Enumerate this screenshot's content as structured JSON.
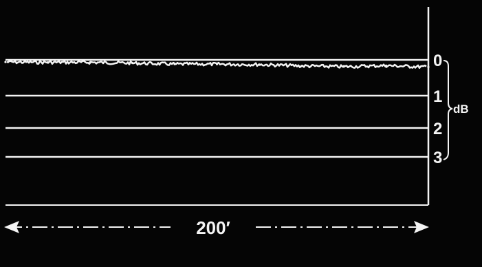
{
  "chart_data": {
    "type": "line",
    "title": "",
    "ylabel": "dB",
    "yticks": [
      "0",
      "1",
      "2",
      "3"
    ],
    "ylim": [
      0,
      3
    ],
    "y_inverted": true,
    "reference_lines": [
      0,
      1,
      2,
      3
    ],
    "x_span_label": "200′",
    "series": [
      {
        "x": [
          0,
          20,
          40,
          60,
          80,
          100,
          120,
          140,
          160,
          180,
          200
        ],
        "values": [
          0.06,
          0.07,
          0.07,
          0.09,
          0.12,
          0.12,
          0.13,
          0.17,
          0.19,
          0.16,
          0.2
        ]
      }
    ],
    "grid": false
  },
  "colors": {
    "background": "#050505",
    "foreground": "#f4f4f4"
  }
}
